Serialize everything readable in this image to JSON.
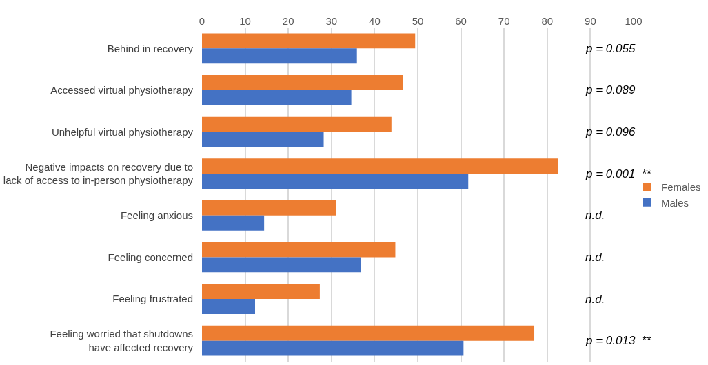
{
  "chart_data": {
    "type": "bar",
    "orientation": "horizontal",
    "categories": [
      "Behind in recovery",
      "Accessed virtual physiotherapy",
      "Unhelpful virtual physiotherapy",
      "Negative impacts on recovery due to\nlack of access to in-person physiotherapy",
      "Feeling anxious",
      "Feeling concerned",
      "Feeling frustrated",
      "Feeling worried that shutdowns\nhave affected recovery"
    ],
    "series": [
      {
        "name": "Females",
        "color": "#ed7d31",
        "values": [
          49.4,
          46.6,
          43.9,
          82.5,
          31.1,
          44.8,
          27.3,
          77.0
        ]
      },
      {
        "name": "Males",
        "color": "#4472c4",
        "values": [
          35.9,
          34.6,
          28.2,
          61.7,
          14.4,
          36.9,
          12.3,
          60.6
        ]
      }
    ],
    "xlim": [
      0,
      100
    ],
    "xticks": [
      0,
      10,
      20,
      30,
      40,
      50,
      60,
      70,
      80,
      90,
      100
    ],
    "grid": "x",
    "legend": "right",
    "annotations": [
      "p = 0.055",
      "p = 0.089",
      "p = 0.096",
      "p = 0.001  **",
      "n.d.",
      "n.d.",
      "n.d.",
      "p = 0.013  **"
    ]
  }
}
